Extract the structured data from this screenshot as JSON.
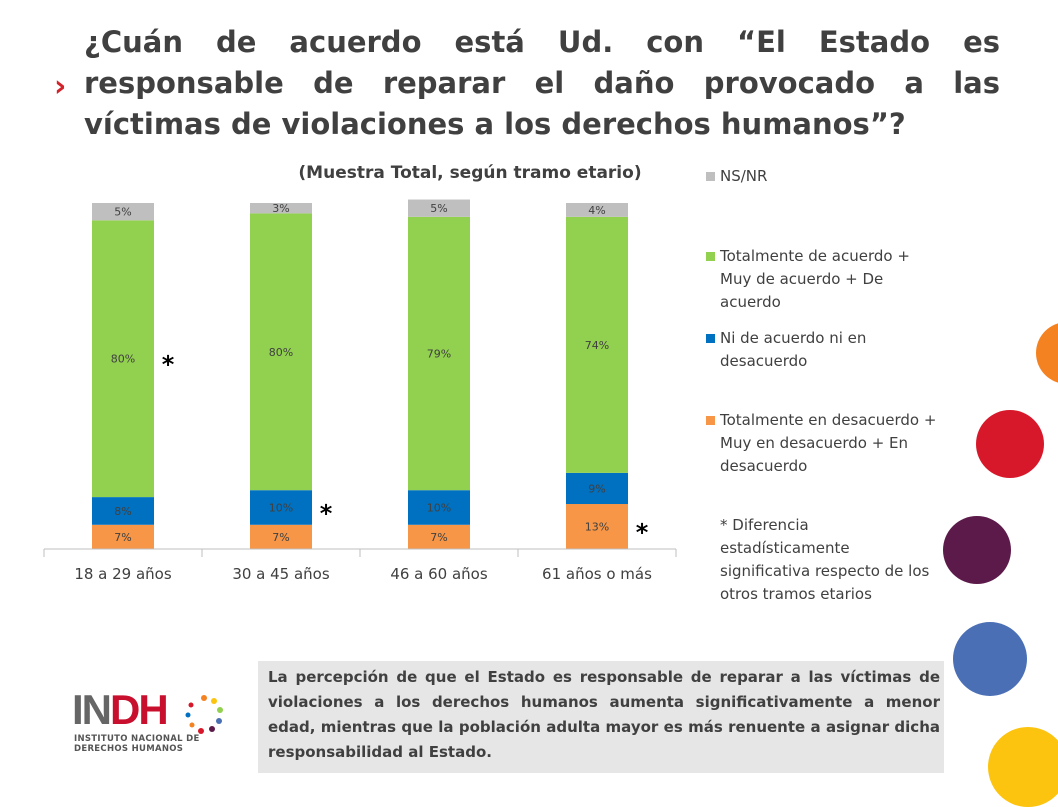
{
  "title": "¿Cuán de acuerdo está Ud. con “El Estado es responsable de reparar el daño provocado a las víctimas de violaciones a los derechos humanos”?",
  "bullet": "›",
  "colors": {
    "nsnr": "#bfbfbf",
    "agree": "#92d050",
    "neutral": "#0070c0",
    "disagree": "#f79646",
    "bullet": "#d2232a",
    "conclusion_bg": "#e6e6e6"
  },
  "chart_data": {
    "type": "bar",
    "stacked": true,
    "subtitle": "(Muestra Total, según tramo etario)",
    "categories": [
      "18 a 29 años",
      "30 a 45 años",
      "46 a 60 años",
      "61 años o más"
    ],
    "series": [
      {
        "name": "Totalmente en desacuerdo + Muy en desacuerdo + En desacuerdo",
        "color": "#f79646",
        "values": [
          7,
          7,
          7,
          13
        ],
        "labels": [
          "7%",
          "7%",
          "7%",
          "13%"
        ]
      },
      {
        "name": "Ni de acuerdo ni en desacuerdo",
        "color": "#0070c0",
        "values": [
          8,
          10,
          10,
          9
        ],
        "labels": [
          "8%",
          "10%",
          "10%",
          "9%"
        ]
      },
      {
        "name": "Totalmente de acuerdo + Muy de acuerdo + De acuerdo",
        "color": "#92d050",
        "values": [
          80,
          80,
          79,
          74
        ],
        "labels": [
          "80%",
          "80%",
          "79%",
          "74%"
        ]
      },
      {
        "name": "NS/NR",
        "color": "#bfbfbf",
        "values": [
          5,
          3,
          5,
          4
        ],
        "labels": [
          "5%",
          "3%",
          "5%",
          "4%"
        ]
      }
    ],
    "significance_marks": [
      {
        "category": "18 a 29 años",
        "series": "Totalmente de acuerdo + Muy de acuerdo + De acuerdo",
        "mark": "*"
      },
      {
        "category": "30 a 45 años",
        "series": "Ni de acuerdo ni en desacuerdo",
        "mark": "*"
      },
      {
        "category": "61 años o más",
        "series": "Totalmente en desacuerdo + Muy en desacuerdo + En desacuerdo",
        "mark": "*"
      }
    ],
    "legend_position": "right",
    "grid": false
  },
  "legend": {
    "items": [
      {
        "label": "NS/NR",
        "color": "#bfbfbf"
      },
      {
        "label": "Totalmente de acuerdo + Muy de acuerdo + De acuerdo",
        "color": "#92d050"
      },
      {
        "label": "Ni de acuerdo ni en desacuerdo",
        "color": "#0070c0"
      },
      {
        "label": "Totalmente en desacuerdo + Muy en desacuerdo + En desacuerdo",
        "color": "#f79646"
      }
    ],
    "footnote": "* Diferencia estadísticamente significativa respecto de los otros tramos etarios"
  },
  "conclusion": "La percepción de que el Estado es responsable de reparar a las víctimas de violaciones a los derechos humanos aumenta significativamente a menor edad, mientras que la población adulta mayor es más renuente a asignar dicha responsabilidad  al Estado.",
  "logo": {
    "letters_in": "IN",
    "letters_dh": "DH",
    "line1": "INSTITUTO NACIONAL DE",
    "line2": "DERECHOS HUMANOS"
  },
  "decor_circles": [
    {
      "name": "orange-circle",
      "color": "#f58220"
    },
    {
      "name": "red-circle",
      "color": "#d7182a"
    },
    {
      "name": "purple-circle",
      "color": "#5c1a4a"
    },
    {
      "name": "blue-circle",
      "color": "#4a6fb5"
    },
    {
      "name": "yellow-circle",
      "color": "#fcc40f"
    }
  ]
}
